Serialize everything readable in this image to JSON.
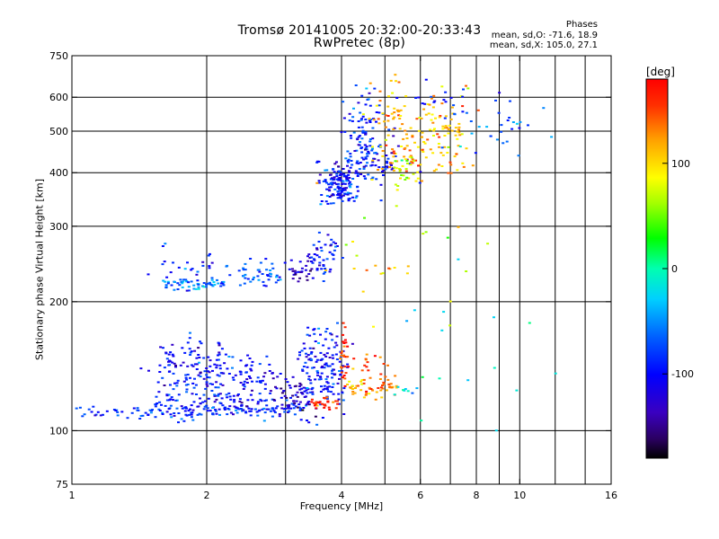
{
  "title": {
    "line1": "Tromsø 20141005 20:32:00-20:33:43",
    "line2": "RwPretec (8p)"
  },
  "phase_info": {
    "heading": "Phases",
    "line_o": "mean, sd,O: -71.6, 18.9",
    "line_x": "mean, sd,X: 105.0, 27.1"
  },
  "chart_data": {
    "type": "scatter",
    "xlabel": "Frequency [MHz]",
    "ylabel": "Stationary phase Virtual Height [km]",
    "x_scale": "log",
    "y_scale": "log",
    "xlim": [
      1,
      16
    ],
    "ylim": [
      75,
      750
    ],
    "x_ticks": [
      1,
      2,
      4,
      6,
      8,
      10,
      16
    ],
    "x_tick_labels": [
      "1",
      "2",
      "4",
      "6",
      "8",
      "10",
      "16"
    ],
    "x_grid": [
      2,
      4,
      6,
      8,
      10
    ],
    "x_minor": [
      3,
      5,
      7,
      9,
      12,
      14
    ],
    "y_ticks": [
      75,
      100,
      200,
      300,
      400,
      500,
      600,
      750
    ],
    "y_tick_labels": [
      "75",
      "100",
      "200",
      "300",
      "400",
      "500",
      "600",
      "750"
    ],
    "y_grid": [
      100,
      200,
      300,
      400,
      500,
      600
    ],
    "grid": true,
    "colorbar": {
      "label": "[deg]",
      "min": -180,
      "max": 180,
      "ticks": [
        100,
        0,
        -100
      ],
      "tick_labels": [
        "100",
        "0",
        "-100"
      ],
      "colormap": "rainbow"
    },
    "series": [
      {
        "x": [
          1.0,
          1.4
        ],
        "y": [
          110,
          110
        ],
        "phase": -90,
        "n": 26,
        "sx": 0.02,
        "sy": 0.02
      },
      {
        "x": [
          1.42,
          3.3
        ],
        "y": [
          110,
          114
        ],
        "phase": -85,
        "n": 150,
        "sx": 0.015,
        "sy": 0.025
      },
      {
        "x": [
          1.6,
          2.2
        ],
        "y": [
          118,
          160
        ],
        "phase": -100,
        "n": 160,
        "sx": 0.05,
        "sy": 0.06
      },
      {
        "x": [
          2.2,
          2.9
        ],
        "y": [
          118,
          140
        ],
        "phase": -105,
        "n": 90,
        "sx": 0.05,
        "sy": 0.05
      },
      {
        "x": [
          2.9,
          3.4
        ],
        "y": [
          114,
          124
        ],
        "phase": -125,
        "n": 40,
        "sx": 0.02,
        "sy": 0.025
      },
      {
        "x": [
          3.3,
          4.0
        ],
        "y": [
          118,
          165
        ],
        "phase": -100,
        "n": 160,
        "sx": 0.03,
        "sy": 0.08
      },
      {
        "x": [
          3.4,
          3.9
        ],
        "y": [
          114,
          117
        ],
        "phase": 160,
        "n": 30,
        "sx": 0.015,
        "sy": 0.015
      },
      {
        "x": [
          4.0,
          4.1
        ],
        "y": [
          130,
          170
        ],
        "phase": 170,
        "n": 25,
        "sx": 0.004,
        "sy": 0.05
      },
      {
        "x": [
          4.1,
          5.3
        ],
        "y": [
          122,
          130
        ],
        "phase": 125,
        "n": 55,
        "sx": 0.02,
        "sy": 0.025
      },
      {
        "x": [
          4.3,
          5.0
        ],
        "y": [
          135,
          150
        ],
        "phase": 150,
        "n": 18,
        "sx": 0.03,
        "sy": 0.04
      },
      {
        "x": [
          5.3,
          5.8
        ],
        "y": [
          122,
          124
        ],
        "phase": -30,
        "n": 8,
        "sx": 0.01,
        "sy": 0.01
      },
      {
        "x": [
          1.6,
          2.2
        ],
        "y": [
          218,
          222
        ],
        "phase": -60,
        "n": 60,
        "sx": 0.01,
        "sy": 0.015
      },
      {
        "x": [
          1.6,
          2.3
        ],
        "y": [
          225,
          260
        ],
        "phase": -85,
        "n": 30,
        "sx": 0.04,
        "sy": 0.04
      },
      {
        "x": [
          2.4,
          2.9
        ],
        "y": [
          225,
          240
        ],
        "phase": -70,
        "n": 40,
        "sx": 0.02,
        "sy": 0.03
      },
      {
        "x": [
          3.1,
          3.4
        ],
        "y": [
          232,
          240
        ],
        "phase": -130,
        "n": 25,
        "sx": 0.02,
        "sy": 0.02
      },
      {
        "x": [
          3.4,
          3.9
        ],
        "y": [
          240,
          275
        ],
        "phase": -100,
        "n": 50,
        "sx": 0.02,
        "sy": 0.04
      },
      {
        "x": [
          4.6,
          5.6
        ],
        "y": [
          235,
          240
        ],
        "phase": 110,
        "n": 8,
        "sx": 0.02,
        "sy": 0.02
      },
      {
        "x": [
          3.7,
          4.2
        ],
        "y": [
          350,
          410
        ],
        "phase": -100,
        "n": 140,
        "sx": 0.035,
        "sy": 0.03
      },
      {
        "x": [
          4.2,
          4.8
        ],
        "y": [
          380,
          560
        ],
        "phase": -80,
        "n": 120,
        "sx": 0.03,
        "sy": 0.08
      },
      {
        "x": [
          4.4,
          5.6
        ],
        "y": [
          390,
          470
        ],
        "phase": -110,
        "n": 40,
        "sx": 0.05,
        "sy": 0.04
      },
      {
        "x": [
          4.8,
          5.8
        ],
        "y": [
          420,
          600
        ],
        "phase": 120,
        "n": 90,
        "sx": 0.04,
        "sy": 0.08
      },
      {
        "x": [
          5.3,
          5.8
        ],
        "y": [
          380,
          440
        ],
        "phase": 70,
        "n": 25,
        "sx": 0.02,
        "sy": 0.03
      },
      {
        "x": [
          6.0,
          7.5
        ],
        "y": [
          420,
          580
        ],
        "phase": 110,
        "n": 90,
        "sx": 0.05,
        "sy": 0.08
      },
      {
        "x": [
          7.5,
          10.5
        ],
        "y": [
          450,
          600
        ],
        "phase": -60,
        "n": 30,
        "sx": 0.08,
        "sy": 0.08
      },
      {
        "x": [
          6.0,
          7.5
        ],
        "y": [
          560,
          620
        ],
        "phase": -90,
        "n": 20,
        "sx": 0.05,
        "sy": 0.04
      },
      {
        "x": [
          4.0,
          8.0
        ],
        "y": [
          200,
          330
        ],
        "phase": 80,
        "n": 20,
        "sx": 0.15,
        "sy": 0.12
      },
      {
        "x": [
          5.0,
          11.0
        ],
        "y": [
          120,
          200
        ],
        "phase": -20,
        "n": 15,
        "sx": 0.15,
        "sy": 0.15
      }
    ]
  },
  "colors": {
    "axis": "#000000",
    "grid": "#000000",
    "background": "#ffffff"
  }
}
